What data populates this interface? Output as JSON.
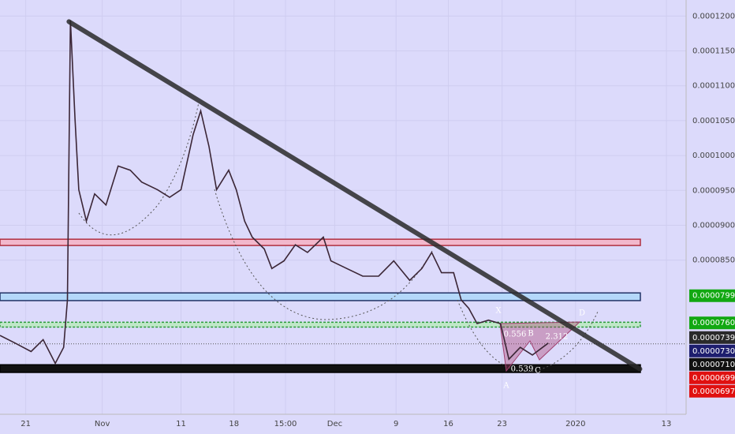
{
  "chart_data": {
    "type": "line",
    "x": [
      -3.4,
      -1.4,
      0.7,
      2.3,
      3.9,
      5.0,
      5.5,
      5.9,
      6.5,
      7.0,
      8.0,
      9.1,
      10.6,
      12.2,
      13.8,
      15.3,
      17.4,
      19.0,
      20.5,
      22.1,
      23.1,
      24.2,
      25.2,
      26.8,
      27.8,
      28.9,
      29.9,
      31.5,
      32.5,
      34.1,
      35.6,
      37.2,
      39.3,
      40.3,
      42.4,
      44.5,
      46.6,
      48.6,
      50.7,
      52.3,
      53.6,
      54.9,
      56.5,
      57.5,
      58.5,
      59.6,
      61.1,
      62.7,
      63.8,
      65.3,
      66.9,
      69.0
    ],
    "series": [
      {
        "color": "#3b2636",
        "values": [
          7.42e-05,
          7.31e-05,
          7.19e-05,
          7.36e-05,
          7.02e-05,
          7.25e-05,
          7.93e-05,
          0.0001194,
          0.0001053,
          9.51e-05,
          9.06e-05,
          9.45e-05,
          9.29e-05,
          9.85e-05,
          9.79e-05,
          9.62e-05,
          9.51e-05,
          9.4e-05,
          9.51e-05,
          0.000103,
          0.0001064,
          0.0001013,
          9.51e-05,
          9.79e-05,
          9.51e-05,
          9.06e-05,
          8.83e-05,
          8.66e-05,
          8.38e-05,
          8.49e-05,
          8.72e-05,
          8.61e-05,
          8.83e-05,
          8.49e-05,
          8.38e-05,
          8.27e-05,
          8.27e-05,
          8.49e-05,
          8.21e-05,
          8.38e-05,
          8.61e-05,
          8.32e-05,
          8.32e-05,
          7.93e-05,
          7.81e-05,
          7.59e-05,
          7.64e-05,
          7.59e-05,
          7.08e-05,
          7.25e-05,
          7.14e-05,
          7.31e-05
        ]
      }
    ],
    "xlim": [
      -3.4,
      87.2
    ],
    "xticks": [
      {
        "value": 0,
        "label": "21"
      },
      {
        "value": 10.1,
        "label": "Nov"
      },
      {
        "value": 20.5,
        "label": "11"
      },
      {
        "value": 27.5,
        "label": "18"
      },
      {
        "value": 34.3,
        "label": "15:00"
      },
      {
        "value": 40.8,
        "label": "Dec"
      },
      {
        "value": 48.9,
        "label": "9"
      },
      {
        "value": 55.8,
        "label": "16"
      },
      {
        "value": 62.9,
        "label": "23"
      },
      {
        "value": 72.6,
        "label": "2020"
      },
      {
        "value": 84.6,
        "label": "13"
      }
    ],
    "ylim": [
      6.29e-05,
      0.0001223
    ],
    "yticks": [
      {
        "value": 0.00012,
        "label": "0.0001200"
      },
      {
        "value": 0.000115,
        "label": "0.0001150"
      },
      {
        "value": 0.00011,
        "label": "0.0001100"
      },
      {
        "value": 0.000105,
        "label": "0.0001050"
      },
      {
        "value": 0.0001,
        "label": "0.0001000"
      },
      {
        "value": 9.5e-05,
        "label": "0.0000950"
      },
      {
        "value": 9e-05,
        "label": "0.0000900"
      },
      {
        "value": 8.5e-05,
        "label": "0.0000850"
      }
    ],
    "grid": true,
    "zones": [
      {
        "from": 8.71e-05,
        "to": 8.8e-05,
        "color": "#f2b8cc",
        "edge": "#b03040"
      },
      {
        "from": 7.92e-05,
        "to": 8.03e-05,
        "color": "#b4d8fa",
        "edge": "#223366"
      },
      {
        "from": 7.54e-05,
        "to": 7.61e-05,
        "color": "#bfe8c8",
        "edge": "#2a9a3a"
      },
      {
        "from": 6.89e-05,
        "to": 7e-05,
        "color": "#111111",
        "edge": "#000000"
      }
    ],
    "trendline": {
      "x": [
        5.7,
        81.1
      ],
      "values": [
        0.0001192,
        6.94e-05
      ]
    },
    "reference_line": 7.3e-05,
    "price_labels": [
      {
        "value": 7.99e-05,
        "label": "0.0000799",
        "color": "#12a812"
      },
      {
        "value": 7.6e-05,
        "label": "0.0000760",
        "color": "#12a812"
      },
      {
        "value": 7.39e-05,
        "label": "0.0000739",
        "color": "#2a2a2a"
      },
      {
        "value": 7.3e-05,
        "label": "0.0000730",
        "color": "#1e1e6e"
      },
      {
        "value": 7.1e-05,
        "label": "0.0000710",
        "color": "#111111"
      },
      {
        "value": 6.99e-05,
        "label": "0.0000699",
        "color": "#e01010"
      },
      {
        "value": 6.97e-05,
        "label": "0.0000697",
        "color": "#e01010"
      }
    ],
    "annotations": [
      "X",
      "A",
      "B",
      "C",
      "D",
      "0.556",
      "2.312",
      "0.539"
    ]
  }
}
